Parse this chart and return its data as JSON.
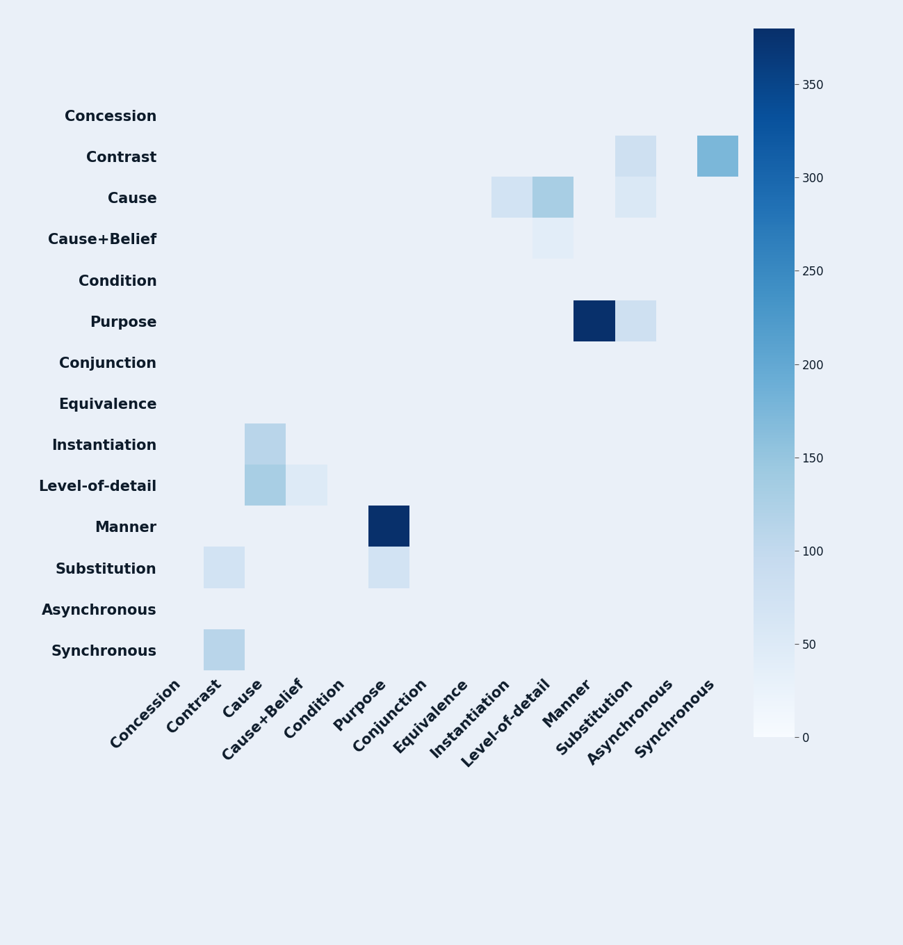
{
  "labels": [
    "Concession",
    "Contrast",
    "Cause",
    "Cause+Belief",
    "Condition",
    "Purpose",
    "Conjunction",
    "Equivalence",
    "Instantiation",
    "Level-of-detail",
    "Manner",
    "Substitution",
    "Asynchronous",
    "Synchronous"
  ],
  "matrix": [
    [
      0,
      0,
      0,
      0,
      0,
      0,
      0,
      0,
      0,
      0,
      0,
      0,
      0,
      0
    ],
    [
      0,
      0,
      0,
      0,
      0,
      0,
      0,
      0,
      0,
      0,
      0,
      80,
      0,
      175
    ],
    [
      0,
      0,
      0,
      0,
      0,
      0,
      0,
      0,
      70,
      130,
      0,
      55,
      0,
      0
    ],
    [
      0,
      0,
      0,
      0,
      0,
      0,
      0,
      0,
      0,
      40,
      0,
      0,
      0,
      0
    ],
    [
      0,
      0,
      0,
      0,
      0,
      0,
      0,
      0,
      0,
      0,
      0,
      0,
      0,
      0
    ],
    [
      0,
      0,
      0,
      0,
      0,
      0,
      0,
      0,
      0,
      0,
      380,
      80,
      0,
      0
    ],
    [
      0,
      0,
      0,
      0,
      0,
      0,
      0,
      0,
      0,
      0,
      0,
      0,
      0,
      0
    ],
    [
      0,
      0,
      0,
      0,
      0,
      0,
      0,
      0,
      0,
      0,
      0,
      0,
      0,
      0
    ],
    [
      0,
      0,
      110,
      0,
      0,
      0,
      0,
      0,
      0,
      0,
      0,
      0,
      0,
      0
    ],
    [
      0,
      0,
      130,
      50,
      0,
      0,
      0,
      0,
      0,
      0,
      0,
      0,
      0,
      0
    ],
    [
      0,
      0,
      0,
      0,
      0,
      380,
      0,
      0,
      0,
      0,
      0,
      0,
      0,
      0
    ],
    [
      0,
      70,
      0,
      0,
      0,
      70,
      0,
      0,
      0,
      0,
      0,
      0,
      0,
      0
    ],
    [
      0,
      0,
      0,
      0,
      0,
      0,
      0,
      0,
      0,
      0,
      0,
      0,
      0,
      0
    ],
    [
      0,
      110,
      0,
      0,
      0,
      0,
      0,
      0,
      0,
      0,
      0,
      0,
      0,
      0
    ]
  ],
  "vmin": 0,
  "vmax": 380,
  "colormap": "Blues",
  "bg_color": "#eaf0f8",
  "tick_fontsize": 15,
  "colorbar_tick_fontsize": 12,
  "label_color": "#0d1b2a",
  "figsize": [
    12.99,
    13.59
  ],
  "dpi": 100
}
